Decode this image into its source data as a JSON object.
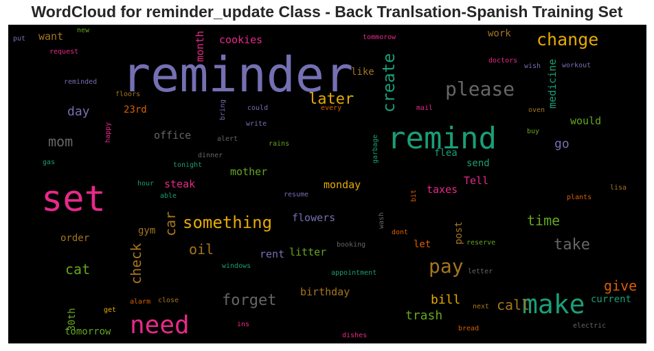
{
  "chart_data": {
    "type": "wordcloud",
    "title": "WordCloud for reminder_update Class - Back Tranlsation-Spanish Training Set",
    "words": [
      {
        "text": "reminder",
        "color": "#7570b3"
      },
      {
        "text": "set",
        "color": "#e7298a"
      },
      {
        "text": "remind",
        "color": "#1b9e77"
      },
      {
        "text": "make",
        "color": "#1b9e77"
      },
      {
        "text": "need",
        "color": "#e7298a"
      },
      {
        "text": "please",
        "color": "#666666"
      },
      {
        "text": "change",
        "color": "#e6ab02"
      },
      {
        "text": "create",
        "color": "#1b9e77"
      },
      {
        "text": "something",
        "color": "#e6ab02"
      },
      {
        "text": "pay",
        "color": "#a6761d"
      },
      {
        "text": "later",
        "color": "#e6ab02"
      },
      {
        "text": "forget",
        "color": "#666666"
      },
      {
        "text": "mom",
        "color": "#666666"
      },
      {
        "text": "cat",
        "color": "#66a61e"
      },
      {
        "text": "time",
        "color": "#66a61e"
      },
      {
        "text": "take",
        "color": "#666666"
      },
      {
        "text": "car",
        "color": "#a6761d"
      },
      {
        "text": "check",
        "color": "#a6761d"
      },
      {
        "text": "oil",
        "color": "#a6761d"
      },
      {
        "text": "give",
        "color": "#d95f02"
      },
      {
        "text": "call",
        "color": "#a6761d"
      },
      {
        "text": "bill",
        "color": "#e6ab02"
      },
      {
        "text": "trash",
        "color": "#66a61e"
      },
      {
        "text": "day",
        "color": "#7570b3"
      },
      {
        "text": "go",
        "color": "#7570b3"
      },
      {
        "text": "medicine",
        "color": "#1b9e77"
      },
      {
        "text": "cookies",
        "color": "#e7298a"
      },
      {
        "text": "month",
        "color": "#e7298a"
      },
      {
        "text": "want",
        "color": "#a6761d"
      },
      {
        "text": "office",
        "color": "#666666"
      },
      {
        "text": "would",
        "color": "#66a61e"
      },
      {
        "text": "mother",
        "color": "#66a61e"
      },
      {
        "text": "steak",
        "color": "#e7298a"
      },
      {
        "text": "monday",
        "color": "#e6ab02"
      },
      {
        "text": "flowers",
        "color": "#7570b3"
      },
      {
        "text": "rent",
        "color": "#7570b3"
      },
      {
        "text": "litter",
        "color": "#66a61e"
      },
      {
        "text": "birthday",
        "color": "#a6761d"
      },
      {
        "text": "taxes",
        "color": "#e7298a"
      },
      {
        "text": "send",
        "color": "#1b9e77"
      },
      {
        "text": "flea",
        "color": "#1b9e77"
      },
      {
        "text": "Tell",
        "color": "#e7298a"
      },
      {
        "text": "current",
        "color": "#1b9e77"
      },
      {
        "text": "tomorrow",
        "color": "#66a61e"
      },
      {
        "text": "30th",
        "color": "#66a61e"
      },
      {
        "text": "order",
        "color": "#a6761d"
      },
      {
        "text": "gym",
        "color": "#a6761d"
      },
      {
        "text": "let",
        "color": "#d95f02"
      },
      {
        "text": "post",
        "color": "#a6761d"
      },
      {
        "text": "work",
        "color": "#a6761d"
      },
      {
        "text": "like",
        "color": "#a6761d"
      },
      {
        "text": "23rd",
        "color": "#d95f02"
      },
      {
        "text": "new",
        "color": "#66a61e"
      },
      {
        "text": "put",
        "color": "#7570b3"
      },
      {
        "text": "request",
        "color": "#e7298a"
      },
      {
        "text": "reminded",
        "color": "#7570b3"
      },
      {
        "text": "floors",
        "color": "#a6761d"
      },
      {
        "text": "bring",
        "color": "#7570b3"
      },
      {
        "text": "could",
        "color": "#7570b3"
      },
      {
        "text": "write",
        "color": "#7570b3"
      },
      {
        "text": "every",
        "color": "#d95f02"
      },
      {
        "text": "mail",
        "color": "#e7298a"
      },
      {
        "text": "tommorow",
        "color": "#e7298a"
      },
      {
        "text": "doctors",
        "color": "#e7298a"
      },
      {
        "text": "wish",
        "color": "#7570b3"
      },
      {
        "text": "workout",
        "color": "#7570b3"
      },
      {
        "text": "oven",
        "color": "#a6761d"
      },
      {
        "text": "buy",
        "color": "#66a61e"
      },
      {
        "text": "happy",
        "color": "#e7298a"
      },
      {
        "text": "alert",
        "color": "#666666"
      },
      {
        "text": "rains",
        "color": "#66a61e"
      },
      {
        "text": "garbage",
        "color": "#1b9e77"
      },
      {
        "text": "dinner",
        "color": "#666666"
      },
      {
        "text": "tonight",
        "color": "#1b9e77"
      },
      {
        "text": "gas",
        "color": "#1b9e77"
      },
      {
        "text": "hour",
        "color": "#1b9e77"
      },
      {
        "text": "able",
        "color": "#1b9e77"
      },
      {
        "text": "resume",
        "color": "#7570b3"
      },
      {
        "text": "bit",
        "color": "#d95f02"
      },
      {
        "text": "lisa",
        "color": "#a6761d"
      },
      {
        "text": "plants",
        "color": "#d95f02"
      },
      {
        "text": "wash",
        "color": "#666666"
      },
      {
        "text": "dont",
        "color": "#d95f02"
      },
      {
        "text": "booking",
        "color": "#666666"
      },
      {
        "text": "reserve",
        "color": "#66a61e"
      },
      {
        "text": "windows",
        "color": "#1b9e77"
      },
      {
        "text": "appointment",
        "color": "#1b9e77"
      },
      {
        "text": "letter",
        "color": "#666666"
      },
      {
        "text": "alarm",
        "color": "#d95f02"
      },
      {
        "text": "close",
        "color": "#a6761d"
      },
      {
        "text": "get",
        "color": "#e6ab02"
      },
      {
        "text": "ins",
        "color": "#e7298a"
      },
      {
        "text": "dishes",
        "color": "#e7298a"
      },
      {
        "text": "bread",
        "color": "#d95f02"
      },
      {
        "text": "next",
        "color": "#a6761d"
      },
      {
        "text": "electric",
        "color": "#666666"
      }
    ]
  }
}
